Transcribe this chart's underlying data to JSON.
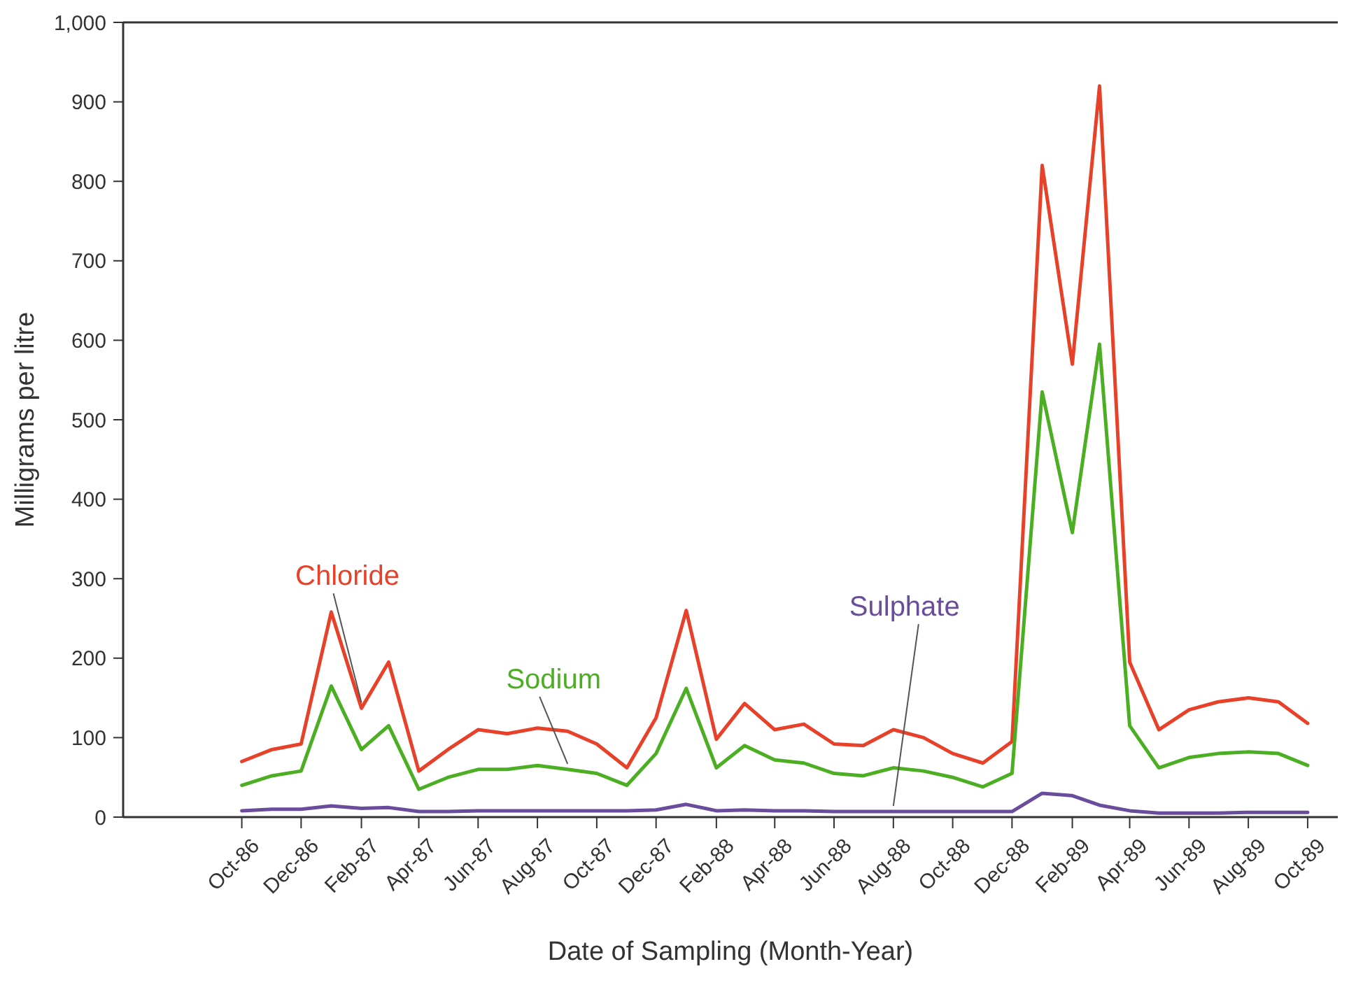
{
  "chart_data": {
    "type": "line",
    "xlabel": "Date of Sampling (Month-Year)",
    "ylabel": "Milligrams per litre",
    "x": [
      "1986-10",
      "1986-11",
      "1986-12",
      "1987-01",
      "1987-02",
      "1987-03",
      "1987-04",
      "1987-05",
      "1987-06",
      "1987-07",
      "1987-08",
      "1987-09",
      "1987-10",
      "1987-11",
      "1987-12",
      "1988-01",
      "1988-02",
      "1988-03",
      "1988-04",
      "1988-05",
      "1988-06",
      "1988-07",
      "1988-08",
      "1988-09",
      "1988-10",
      "1988-11",
      "1988-12",
      "1989-01",
      "1989-02",
      "1989-03",
      "1989-04",
      "1989-05",
      "1989-06",
      "1989-07",
      "1989-08",
      "1989-09",
      "1989-10"
    ],
    "series": [
      {
        "name": "Chloride",
        "color": "#e8412a",
        "values": [
          70,
          85,
          92,
          258,
          137,
          195,
          58,
          85,
          110,
          105,
          112,
          108,
          92,
          62,
          125,
          260,
          98,
          143,
          110,
          117,
          92,
          90,
          110,
          100,
          80,
          68,
          95,
          820,
          570,
          920,
          195,
          110,
          135,
          145,
          150,
          145,
          118
        ]
      },
      {
        "name": "Sodium",
        "color": "#4caf23",
        "values": [
          40,
          52,
          58,
          165,
          85,
          115,
          35,
          50,
          60,
          60,
          65,
          60,
          55,
          40,
          80,
          162,
          62,
          90,
          72,
          68,
          55,
          52,
          62,
          58,
          50,
          38,
          55,
          535,
          358,
          595,
          115,
          62,
          75,
          80,
          82,
          80,
          65
        ]
      },
      {
        "name": "Sulphate",
        "color": "#6a4c9c",
        "values": [
          8,
          10,
          10,
          14,
          11,
          12,
          7,
          7,
          8,
          8,
          8,
          8,
          8,
          8,
          9,
          16,
          8,
          9,
          8,
          8,
          7,
          7,
          7,
          7,
          7,
          7,
          7,
          30,
          27,
          15,
          8,
          5,
          5,
          5,
          6,
          6,
          6
        ]
      }
    ],
    "xlim": [
      "1986-06",
      "1989-11"
    ],
    "xticks": [
      {
        "value": "1986-10",
        "label": "Oct-86"
      },
      {
        "value": "1986-12",
        "label": "Dec-86"
      },
      {
        "value": "1987-02",
        "label": "Feb-87"
      },
      {
        "value": "1987-04",
        "label": "Apr-87"
      },
      {
        "value": "1987-06",
        "label": "Jun-87"
      },
      {
        "value": "1987-08",
        "label": "Aug-87"
      },
      {
        "value": "1987-10",
        "label": "Oct-87"
      },
      {
        "value": "1987-12",
        "label": "Dec-87"
      },
      {
        "value": "1988-02",
        "label": "Feb-88"
      },
      {
        "value": "1988-04",
        "label": "Apr-88"
      },
      {
        "value": "1988-06",
        "label": "Jun-88"
      },
      {
        "value": "1988-08",
        "label": "Aug-88"
      },
      {
        "value": "1988-10",
        "label": "Oct-88"
      },
      {
        "value": "1988-12",
        "label": "Dec-88"
      },
      {
        "value": "1989-02",
        "label": "Feb-89"
      },
      {
        "value": "1989-04",
        "label": "Apr-89"
      },
      {
        "value": "1989-06",
        "label": "Jun-89"
      },
      {
        "value": "1989-08",
        "label": "Aug-89"
      },
      {
        "value": "1989-10",
        "label": "Oct-89"
      }
    ],
    "ylim": [
      0,
      1000
    ],
    "yticks": [
      0,
      100,
      200,
      300,
      400,
      500,
      600,
      700,
      800,
      900,
      {
        "value": 1000,
        "label": "1,000"
      }
    ],
    "grid": false,
    "legend": false,
    "marker": "none",
    "line_style": "solid"
  }
}
